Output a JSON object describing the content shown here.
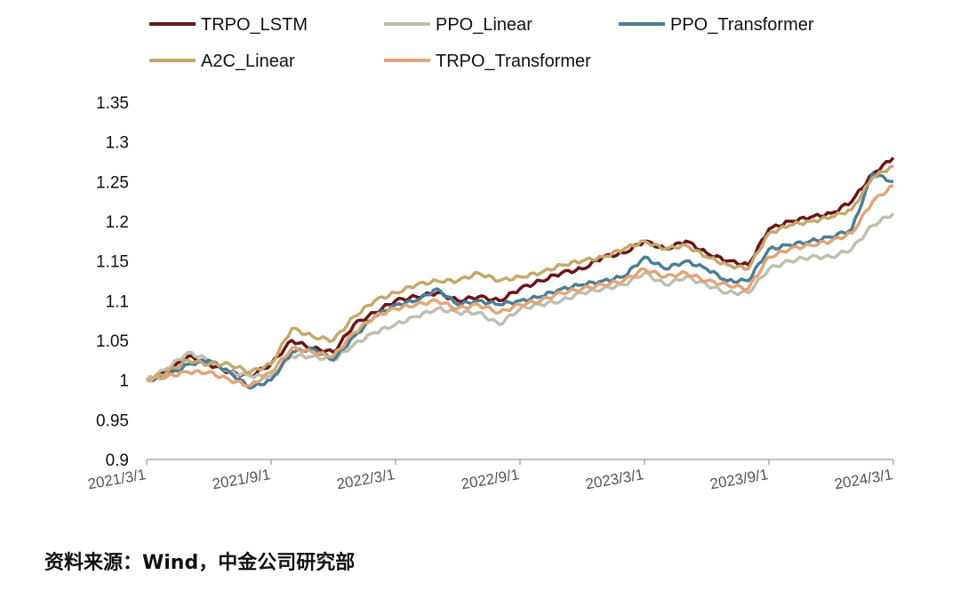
{
  "chart_data": {
    "type": "line",
    "ylim": [
      0.9,
      1.35
    ],
    "yticks": [
      "0.9",
      "0.95",
      "1",
      "1.05",
      "1.1",
      "1.15",
      "1.2",
      "1.25",
      "1.3",
      "1.35"
    ],
    "xticks": [
      "2021/3/1",
      "2021/9/1",
      "2022/3/1",
      "2022/9/1",
      "2023/3/1",
      "2023/9/1",
      "2024/3/1"
    ],
    "grid": false,
    "legend_position": "top",
    "series": [
      {
        "name": "TRPO_LSTM",
        "color": "#6b1416",
        "points": [
          [
            "2021/3/1",
            1.0
          ],
          [
            "2021/4/1",
            1.01
          ],
          [
            "2021/5/1",
            1.03
          ],
          [
            "2021/6/1",
            1.02
          ],
          [
            "2021/7/1",
            1.01
          ],
          [
            "2021/8/1",
            1.005
          ],
          [
            "2021/9/1",
            1.02
          ],
          [
            "2021/10/1",
            1.05
          ],
          [
            "2021/11/1",
            1.04
          ],
          [
            "2021/12/1",
            1.035
          ],
          [
            "2022/1/1",
            1.07
          ],
          [
            "2022/2/1",
            1.085
          ],
          [
            "2022/3/1",
            1.1
          ],
          [
            "2022/4/1",
            1.105
          ],
          [
            "2022/5/1",
            1.11
          ],
          [
            "2022/6/1",
            1.1
          ],
          [
            "2022/7/1",
            1.105
          ],
          [
            "2022/8/1",
            1.1
          ],
          [
            "2022/9/1",
            1.115
          ],
          [
            "2022/10/1",
            1.125
          ],
          [
            "2022/11/1",
            1.135
          ],
          [
            "2022/12/1",
            1.14
          ],
          [
            "2023/1/1",
            1.155
          ],
          [
            "2023/2/1",
            1.16
          ],
          [
            "2023/3/1",
            1.175
          ],
          [
            "2023/4/1",
            1.165
          ],
          [
            "2023/5/1",
            1.175
          ],
          [
            "2023/6/1",
            1.16
          ],
          [
            "2023/7/1",
            1.15
          ],
          [
            "2023/8/1",
            1.145
          ],
          [
            "2023/9/1",
            1.19
          ],
          [
            "2023/10/1",
            1.2
          ],
          [
            "2023/11/1",
            1.205
          ],
          [
            "2023/12/1",
            1.21
          ],
          [
            "2024/1/1",
            1.225
          ],
          [
            "2024/2/1",
            1.26
          ],
          [
            "2024/3/1",
            1.28
          ]
        ]
      },
      {
        "name": "PPO_Linear",
        "color": "#bfbfb0",
        "points": [
          [
            "2021/3/1",
            1.0
          ],
          [
            "2021/4/1",
            1.015
          ],
          [
            "2021/5/1",
            1.035
          ],
          [
            "2021/6/1",
            1.025
          ],
          [
            "2021/7/1",
            1.01
          ],
          [
            "2021/8/1",
            1.005
          ],
          [
            "2021/9/1",
            1.005
          ],
          [
            "2021/10/1",
            1.03
          ],
          [
            "2021/11/1",
            1.03
          ],
          [
            "2021/12/1",
            1.025
          ],
          [
            "2022/1/1",
            1.045
          ],
          [
            "2022/2/1",
            1.06
          ],
          [
            "2022/3/1",
            1.07
          ],
          [
            "2022/4/1",
            1.08
          ],
          [
            "2022/5/1",
            1.09
          ],
          [
            "2022/6/1",
            1.085
          ],
          [
            "2022/7/1",
            1.085
          ],
          [
            "2022/8/1",
            1.07
          ],
          [
            "2022/9/1",
            1.09
          ],
          [
            "2022/10/1",
            1.095
          ],
          [
            "2022/11/1",
            1.1
          ],
          [
            "2022/12/1",
            1.11
          ],
          [
            "2023/1/1",
            1.115
          ],
          [
            "2023/2/1",
            1.12
          ],
          [
            "2023/3/1",
            1.135
          ],
          [
            "2023/4/1",
            1.12
          ],
          [
            "2023/5/1",
            1.13
          ],
          [
            "2023/6/1",
            1.12
          ],
          [
            "2023/7/1",
            1.11
          ],
          [
            "2023/8/1",
            1.11
          ],
          [
            "2023/9/1",
            1.14
          ],
          [
            "2023/10/1",
            1.15
          ],
          [
            "2023/11/1",
            1.155
          ],
          [
            "2023/12/1",
            1.155
          ],
          [
            "2024/1/1",
            1.165
          ],
          [
            "2024/2/1",
            1.195
          ],
          [
            "2024/3/1",
            1.21
          ]
        ]
      },
      {
        "name": "PPO_Transformer",
        "color": "#4a7f96",
        "points": [
          [
            "2021/3/1",
            1.0
          ],
          [
            "2021/4/1",
            1.005
          ],
          [
            "2021/5/1",
            1.02
          ],
          [
            "2021/6/1",
            1.025
          ],
          [
            "2021/7/1",
            1.01
          ],
          [
            "2021/8/1",
            0.99
          ],
          [
            "2021/9/1",
            1.0
          ],
          [
            "2021/10/1",
            1.035
          ],
          [
            "2021/11/1",
            1.04
          ],
          [
            "2021/12/1",
            1.025
          ],
          [
            "2022/1/1",
            1.055
          ],
          [
            "2022/2/1",
            1.08
          ],
          [
            "2022/3/1",
            1.095
          ],
          [
            "2022/4/1",
            1.1
          ],
          [
            "2022/5/1",
            1.115
          ],
          [
            "2022/6/1",
            1.095
          ],
          [
            "2022/7/1",
            1.1
          ],
          [
            "2022/8/1",
            1.095
          ],
          [
            "2022/9/1",
            1.1
          ],
          [
            "2022/10/1",
            1.105
          ],
          [
            "2022/11/1",
            1.115
          ],
          [
            "2022/12/1",
            1.12
          ],
          [
            "2023/1/1",
            1.125
          ],
          [
            "2023/2/1",
            1.13
          ],
          [
            "2023/3/1",
            1.155
          ],
          [
            "2023/4/1",
            1.14
          ],
          [
            "2023/5/1",
            1.15
          ],
          [
            "2023/6/1",
            1.14
          ],
          [
            "2023/7/1",
            1.125
          ],
          [
            "2023/8/1",
            1.125
          ],
          [
            "2023/9/1",
            1.165
          ],
          [
            "2023/10/1",
            1.17
          ],
          [
            "2023/11/1",
            1.175
          ],
          [
            "2023/12/1",
            1.18
          ],
          [
            "2024/1/1",
            1.19
          ],
          [
            "2024/2/1",
            1.26
          ],
          [
            "2024/3/1",
            1.25
          ]
        ]
      },
      {
        "name": "A2C_Linear",
        "color": "#c4a86c",
        "points": [
          [
            "2021/3/1",
            1.0
          ],
          [
            "2021/4/1",
            1.01
          ],
          [
            "2021/5/1",
            1.025
          ],
          [
            "2021/6/1",
            1.02
          ],
          [
            "2021/7/1",
            1.02
          ],
          [
            "2021/8/1",
            1.01
          ],
          [
            "2021/9/1",
            1.02
          ],
          [
            "2021/10/1",
            1.065
          ],
          [
            "2021/11/1",
            1.055
          ],
          [
            "2021/12/1",
            1.05
          ],
          [
            "2022/1/1",
            1.08
          ],
          [
            "2022/2/1",
            1.1
          ],
          [
            "2022/3/1",
            1.11
          ],
          [
            "2022/4/1",
            1.12
          ],
          [
            "2022/5/1",
            1.125
          ],
          [
            "2022/6/1",
            1.125
          ],
          [
            "2022/7/1",
            1.135
          ],
          [
            "2022/8/1",
            1.125
          ],
          [
            "2022/9/1",
            1.13
          ],
          [
            "2022/10/1",
            1.135
          ],
          [
            "2022/11/1",
            1.145
          ],
          [
            "2022/12/1",
            1.15
          ],
          [
            "2023/1/1",
            1.155
          ],
          [
            "2023/2/1",
            1.165
          ],
          [
            "2023/3/1",
            1.175
          ],
          [
            "2023/4/1",
            1.165
          ],
          [
            "2023/5/1",
            1.17
          ],
          [
            "2023/6/1",
            1.155
          ],
          [
            "2023/7/1",
            1.145
          ],
          [
            "2023/8/1",
            1.14
          ],
          [
            "2023/9/1",
            1.185
          ],
          [
            "2023/10/1",
            1.195
          ],
          [
            "2023/11/1",
            1.2
          ],
          [
            "2023/12/1",
            1.205
          ],
          [
            "2024/1/1",
            1.215
          ],
          [
            "2024/2/1",
            1.255
          ],
          [
            "2024/3/1",
            1.27
          ]
        ]
      },
      {
        "name": "TRPO_Transformer",
        "color": "#e3a576",
        "points": [
          [
            "2021/3/1",
            1.0
          ],
          [
            "2021/4/1",
            1.005
          ],
          [
            "2021/5/1",
            1.01
          ],
          [
            "2021/6/1",
            1.01
          ],
          [
            "2021/7/1",
            1.0
          ],
          [
            "2021/8/1",
            0.993
          ],
          [
            "2021/9/1",
            1.01
          ],
          [
            "2021/10/1",
            1.04
          ],
          [
            "2021/11/1",
            1.035
          ],
          [
            "2021/12/1",
            1.03
          ],
          [
            "2022/1/1",
            1.06
          ],
          [
            "2022/2/1",
            1.08
          ],
          [
            "2022/3/1",
            1.09
          ],
          [
            "2022/4/1",
            1.095
          ],
          [
            "2022/5/1",
            1.1
          ],
          [
            "2022/6/1",
            1.09
          ],
          [
            "2022/7/1",
            1.095
          ],
          [
            "2022/8/1",
            1.085
          ],
          [
            "2022/9/1",
            1.095
          ],
          [
            "2022/10/1",
            1.1
          ],
          [
            "2022/11/1",
            1.11
          ],
          [
            "2022/12/1",
            1.115
          ],
          [
            "2023/1/1",
            1.12
          ],
          [
            "2023/2/1",
            1.125
          ],
          [
            "2023/3/1",
            1.14
          ],
          [
            "2023/4/1",
            1.13
          ],
          [
            "2023/5/1",
            1.135
          ],
          [
            "2023/6/1",
            1.125
          ],
          [
            "2023/7/1",
            1.12
          ],
          [
            "2023/8/1",
            1.115
          ],
          [
            "2023/9/1",
            1.155
          ],
          [
            "2023/10/1",
            1.165
          ],
          [
            "2023/11/1",
            1.17
          ],
          [
            "2023/12/1",
            1.175
          ],
          [
            "2024/1/1",
            1.185
          ],
          [
            "2024/2/1",
            1.225
          ],
          [
            "2024/3/1",
            1.245
          ]
        ]
      }
    ]
  },
  "source": "资料来源：Wind，中金公司研究部"
}
